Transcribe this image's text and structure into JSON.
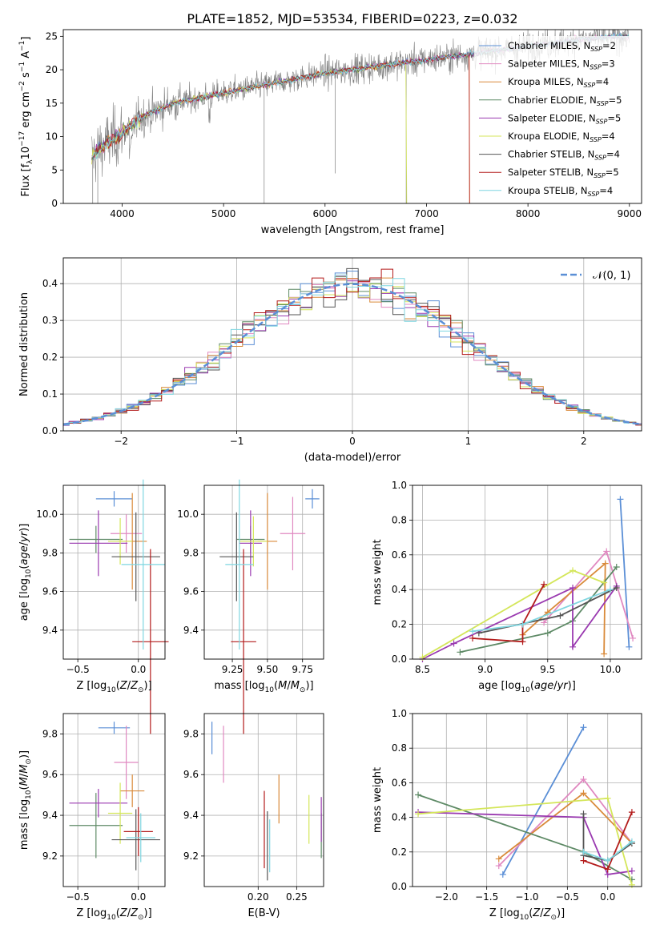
{
  "figure": {
    "title": "PLATE=1852, MJD=53534, FIBERID=0223, z=0.032"
  },
  "chart_data": [
    {
      "id": "spectrum",
      "type": "line",
      "xlabel": "wavelength [Angstrom, rest frame]",
      "ylabel": "Flux [f_λ 10^-17 erg cm^-2 s^-1 A^-1]",
      "xlim": [
        3420,
        9120
      ],
      "ylim": [
        0,
        26
      ],
      "xticks": [
        4000,
        5000,
        6000,
        7000,
        8000,
        9000
      ],
      "yticks": [
        0,
        5,
        10,
        15,
        20,
        25
      ],
      "grid": false,
      "legend_position": "lower-right",
      "legend": [
        {
          "label": "Chabrier MILES, N",
          "sub": "SSP",
          "tail": "=2",
          "color": "#5b8fd6"
        },
        {
          "label": "Salpeter MILES, N",
          "sub": "SSP",
          "tail": "=3",
          "color": "#e088c0"
        },
        {
          "label": "Kroupa MILES, N",
          "sub": "SSP",
          "tail": "=4",
          "color": "#d98a3a"
        },
        {
          "label": "Chabrier ELODIE, N",
          "sub": "SSP",
          "tail": "=5",
          "color": "#5e8a66"
        },
        {
          "label": "Salpeter ELODIE, N",
          "sub": "SSP",
          "tail": "=5",
          "color": "#9a3ab0"
        },
        {
          "label": "Kroupa ELODIE, N",
          "sub": "SSP",
          "tail": "=4",
          "color": "#d4e65a"
        },
        {
          "label": "Chabrier STELIB, N",
          "sub": "SSP",
          "tail": "=4",
          "color": "#555555"
        },
        {
          "label": "Salpeter STELIB, N",
          "sub": "SSP",
          "tail": "=5",
          "color": "#b31b1b"
        },
        {
          "label": "Kroupa STELIB, N",
          "sub": "SSP",
          "tail": "=4",
          "color": "#7fd6e0"
        }
      ],
      "continuum": [
        [
          3700,
          7
        ],
        [
          3800,
          8.5
        ],
        [
          4000,
          10.5
        ],
        [
          4200,
          13
        ],
        [
          4500,
          15
        ],
        [
          5000,
          16.5
        ],
        [
          5500,
          18
        ],
        [
          6000,
          19.5
        ],
        [
          6500,
          20.5
        ],
        [
          7000,
          21.5
        ],
        [
          7500,
          22.5
        ],
        [
          8000,
          23.5
        ],
        [
          8500,
          24.5
        ],
        [
          8900,
          25
        ]
      ]
    },
    {
      "id": "residuals",
      "type": "histogram",
      "xlabel": "(data-model)/error",
      "ylabel": "Normed distribution",
      "xlim": [
        -2.5,
        2.5
      ],
      "ylim": [
        0,
        0.47
      ],
      "xticks": [
        -2,
        -1,
        0,
        1,
        2
      ],
      "yticks": [
        0.0,
        0.1,
        0.2,
        0.3,
        0.4
      ],
      "grid": true,
      "legend_position": "upper-right",
      "legend": [
        {
          "label": "𝒩(0, 1)",
          "color": "#5b8fd6",
          "style": "dashed"
        }
      ],
      "bin_width": 0.1
    },
    {
      "id": "age_vs_Z",
      "type": "errorbar",
      "xlabel": "Z [log10(Z/Z⊙)]",
      "ylabel": "age  [log10(age/yr)]",
      "xlim": [
        -0.62,
        0.22
      ],
      "ylim": [
        9.25,
        10.15
      ],
      "xticks": [
        -0.5,
        0.0
      ],
      "yticks": [
        9.4,
        9.6,
        9.8,
        10.0
      ],
      "grid": true,
      "points": [
        {
          "x": -0.2,
          "xerr": 0.15,
          "y": 10.08,
          "yerr": 0.04,
          "color": "#5b8fd6"
        },
        {
          "x": -0.1,
          "xerr": 0.13,
          "y": 9.9,
          "yerr": 0.1,
          "color": "#e088c0"
        },
        {
          "x": -0.05,
          "xerr": 0.12,
          "y": 9.86,
          "yerr": 0.25,
          "color": "#d98a3a"
        },
        {
          "x": -0.35,
          "xerr": 0.22,
          "y": 9.87,
          "yerr": 0.07,
          "color": "#5e8a66"
        },
        {
          "x": -0.33,
          "xerr": 0.24,
          "y": 9.85,
          "yerr": 0.17,
          "color": "#9a3ab0"
        },
        {
          "x": -0.15,
          "xerr": 0.1,
          "y": 9.86,
          "yerr": 0.12,
          "color": "#d4e65a"
        },
        {
          "x": -0.02,
          "xerr": 0.2,
          "y": 9.78,
          "yerr": 0.23,
          "color": "#555555"
        },
        {
          "x": 0.1,
          "xerr": 0.15,
          "y": 9.34,
          "yerr": 0.48,
          "color": "#b31b1b"
        },
        {
          "x": 0.04,
          "xerr": 0.18,
          "y": 9.74,
          "yerr": 0.44,
          "color": "#7fd6e0"
        }
      ]
    },
    {
      "id": "age_vs_mass",
      "type": "errorbar",
      "xlabel": "mass [log10(M/M⊙)]",
      "ylabel": "",
      "xlim": [
        9.05,
        9.9
      ],
      "ylim": [
        9.25,
        10.15
      ],
      "xticks": [
        9.25,
        9.5,
        9.75
      ],
      "yticks": [
        9.4,
        9.6,
        9.8,
        10.0
      ],
      "grid": true,
      "points": [
        {
          "x": 9.82,
          "xerr": 0.05,
          "y": 10.08,
          "yerr": 0.05,
          "color": "#5b8fd6"
        },
        {
          "x": 9.68,
          "xerr": 0.09,
          "y": 9.9,
          "yerr": 0.19,
          "color": "#e088c0"
        },
        {
          "x": 9.5,
          "xerr": 0.07,
          "y": 9.86,
          "yerr": 0.25,
          "color": "#d98a3a"
        },
        {
          "x": 9.38,
          "xerr": 0.1,
          "y": 9.87,
          "yerr": 0.07,
          "color": "#5e8a66"
        },
        {
          "x": 9.38,
          "xerr": 0.08,
          "y": 9.85,
          "yerr": 0.17,
          "color": "#9a3ab0"
        },
        {
          "x": 9.4,
          "xerr": 0.1,
          "y": 9.86,
          "yerr": 0.13,
          "color": "#d4e65a"
        },
        {
          "x": 9.28,
          "xerr": 0.12,
          "y": 9.78,
          "yerr": 0.23,
          "color": "#555555"
        },
        {
          "x": 9.33,
          "xerr": 0.09,
          "y": 9.34,
          "yerr": 0.48,
          "color": "#b31b1b"
        },
        {
          "x": 9.3,
          "xerr": 0.1,
          "y": 9.74,
          "yerr": 0.44,
          "color": "#7fd6e0"
        }
      ]
    },
    {
      "id": "weight_vs_age",
      "type": "line",
      "xlabel": "age  [log10(age/yr)]",
      "ylabel": "mass weight",
      "xlim": [
        8.42,
        10.25
      ],
      "ylim": [
        0,
        1
      ],
      "xticks": [
        8.5,
        9.0,
        9.5,
        10.0
      ],
      "yticks": [
        0.0,
        0.2,
        0.4,
        0.6,
        0.8,
        1.0
      ],
      "grid": true,
      "series": [
        {
          "color": "#5b8fd6",
          "points": [
            [
              10.08,
              0.92
            ],
            [
              10.15,
              0.07
            ]
          ]
        },
        {
          "color": "#e088c0",
          "points": [
            [
              9.47,
              0.21
            ],
            [
              9.97,
              0.62
            ],
            [
              10.18,
              0.12
            ]
          ]
        },
        {
          "color": "#d98a3a",
          "points": [
            [
              9.3,
              0.14
            ],
            [
              9.5,
              0.27
            ],
            [
              9.96,
              0.55
            ],
            [
              9.95,
              0.03
            ]
          ]
        },
        {
          "color": "#5e8a66",
          "points": [
            [
              8.8,
              0.04
            ],
            [
              9.5,
              0.15
            ],
            [
              9.7,
              0.22
            ],
            [
              10.05,
              0.53
            ]
          ]
        },
        {
          "color": "#9a3ab0",
          "points": [
            [
              8.5,
              0.0
            ],
            [
              8.75,
              0.09
            ],
            [
              9.7,
              0.41
            ],
            [
              9.7,
              0.07
            ],
            [
              10.05,
              0.42
            ]
          ]
        },
        {
          "color": "#d4e65a",
          "points": [
            [
              8.5,
              0.01
            ],
            [
              9.7,
              0.51
            ],
            [
              9.95,
              0.44
            ]
          ]
        },
        {
          "color": "#555555",
          "points": [
            [
              8.95,
              0.15
            ],
            [
              9.6,
              0.25
            ],
            [
              10.05,
              0.41
            ]
          ]
        },
        {
          "color": "#b31b1b",
          "points": [
            [
              8.9,
              0.12
            ],
            [
              9.3,
              0.1
            ],
            [
              9.3,
              0.2
            ],
            [
              9.47,
              0.43
            ]
          ]
        },
        {
          "color": "#7fd6e0",
          "points": [
            [
              8.9,
              0.16
            ],
            [
              9.3,
              0.2
            ],
            [
              10.0,
              0.4
            ]
          ]
        }
      ]
    },
    {
      "id": "mass_vs_Z",
      "type": "errorbar",
      "xlabel": "Z [log10(Z/Z⊙)]",
      "ylabel": "mass [log10(M/M⊙)]",
      "xlim": [
        -0.62,
        0.22
      ],
      "ylim": [
        9.05,
        9.9
      ],
      "xticks": [
        -0.5,
        0.0
      ],
      "yticks": [
        9.2,
        9.4,
        9.6,
        9.8
      ],
      "grid": true,
      "points": [
        {
          "x": -0.2,
          "xerr": 0.13,
          "y": 9.83,
          "yerr": 0.03,
          "color": "#5b8fd6"
        },
        {
          "x": -0.1,
          "xerr": 0.1,
          "y": 9.66,
          "yerr": 0.18,
          "color": "#e088c0"
        },
        {
          "x": -0.05,
          "xerr": 0.1,
          "y": 9.52,
          "yerr": 0.08,
          "color": "#d98a3a"
        },
        {
          "x": -0.35,
          "xerr": 0.22,
          "y": 9.35,
          "yerr": 0.16,
          "color": "#5e8a66"
        },
        {
          "x": -0.33,
          "xerr": 0.24,
          "y": 9.46,
          "yerr": 0.07,
          "color": "#9a3ab0"
        },
        {
          "x": -0.15,
          "xerr": 0.1,
          "y": 9.41,
          "yerr": 0.15,
          "color": "#d4e65a"
        },
        {
          "x": -0.02,
          "xerr": 0.2,
          "y": 9.28,
          "yerr": 0.15,
          "color": "#555555"
        },
        {
          "x": 0.0,
          "xerr": 0.12,
          "y": 9.32,
          "yerr": 0.12,
          "color": "#b31b1b"
        },
        {
          "x": 0.02,
          "xerr": 0.12,
          "y": 9.29,
          "yerr": 0.12,
          "color": "#7fd6e0"
        }
      ]
    },
    {
      "id": "mass_vs_ebv",
      "type": "errorbar",
      "xlabel": "E(B-V)",
      "ylabel": "",
      "xlim": [
        0.13,
        0.285
      ],
      "ylim": [
        9.05,
        9.9
      ],
      "xticks": [
        0.2,
        0.25
      ],
      "yticks": [
        9.2,
        9.4,
        9.6,
        9.8
      ],
      "grid": true,
      "points": [
        {
          "x": 0.14,
          "y": 9.78,
          "yerr": 0.08,
          "color": "#5b8fd6"
        },
        {
          "x": 0.155,
          "y": 9.7,
          "yerr": 0.14,
          "color": "#e088c0"
        },
        {
          "x": 0.227,
          "y": 9.48,
          "yerr": 0.12,
          "color": "#d98a3a"
        },
        {
          "x": 0.282,
          "y": 9.3,
          "yerr": 0.11,
          "color": "#5e8a66"
        },
        {
          "x": 0.282,
          "y": 9.38,
          "yerr": 0.11,
          "color": "#9a3ab0"
        },
        {
          "x": 0.266,
          "y": 9.38,
          "yerr": 0.12,
          "color": "#d4e65a"
        },
        {
          "x": 0.212,
          "y": 9.25,
          "yerr": 0.17,
          "color": "#555555"
        },
        {
          "x": 0.208,
          "y": 9.33,
          "yerr": 0.19,
          "color": "#b31b1b"
        },
        {
          "x": 0.215,
          "y": 9.25,
          "yerr": 0.13,
          "color": "#7fd6e0"
        }
      ]
    },
    {
      "id": "weight_vs_Z",
      "type": "line",
      "xlabel": "Z [log10(Z/Z⊙)]",
      "ylabel": "mass weight",
      "xlim": [
        -2.42,
        0.42
      ],
      "ylim": [
        0,
        1
      ],
      "xticks": [
        -2.0,
        -1.5,
        -1.0,
        -0.5,
        0.0
      ],
      "yticks": [
        0.0,
        0.2,
        0.4,
        0.6,
        0.8,
        1.0
      ],
      "grid": true,
      "series": [
        {
          "color": "#5b8fd6",
          "points": [
            [
              -1.3,
              0.07
            ],
            [
              -0.3,
              0.92
            ]
          ]
        },
        {
          "color": "#e088c0",
          "points": [
            [
              -1.35,
              0.12
            ],
            [
              -0.3,
              0.62
            ],
            [
              0.3,
              0.25
            ]
          ]
        },
        {
          "color": "#d98a3a",
          "points": [
            [
              -1.35,
              0.16
            ],
            [
              -0.3,
              0.54
            ],
            [
              0.3,
              0.25
            ]
          ]
        },
        {
          "color": "#5e8a66",
          "points": [
            [
              -2.35,
              0.53
            ],
            [
              -0.3,
              0.2
            ],
            [
              0.3,
              0.04
            ]
          ]
        },
        {
          "color": "#9a3ab0",
          "points": [
            [
              -2.35,
              0.43
            ],
            [
              -0.3,
              0.4
            ],
            [
              0.0,
              0.07
            ],
            [
              0.3,
              0.09
            ]
          ]
        },
        {
          "color": "#d4e65a",
          "points": [
            [
              -2.35,
              0.42
            ],
            [
              0.0,
              0.51
            ],
            [
              0.3,
              0.01
            ]
          ]
        },
        {
          "color": "#555555",
          "points": [
            [
              -0.3,
              0.42
            ],
            [
              -0.3,
              0.18
            ],
            [
              0.0,
              0.15
            ],
            [
              0.3,
              0.25
            ]
          ]
        },
        {
          "color": "#b31b1b",
          "points": [
            [
              -0.3,
              0.15
            ],
            [
              0.0,
              0.1
            ],
            [
              0.3,
              0.43
            ]
          ]
        },
        {
          "color": "#7fd6e0",
          "points": [
            [
              -0.3,
              0.2
            ],
            [
              0.0,
              0.15
            ],
            [
              0.3,
              0.26
            ]
          ]
        }
      ]
    }
  ]
}
